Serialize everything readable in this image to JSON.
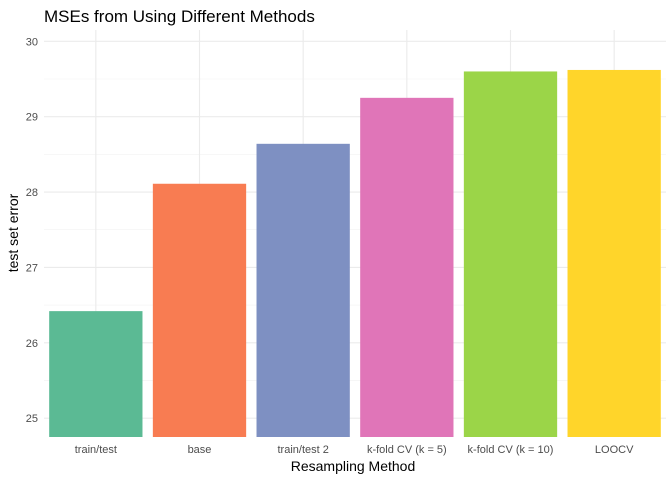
{
  "chart_data": {
    "type": "bar",
    "title": "MSEs from Using Different Methods",
    "xlabel": "Resampling Method",
    "ylabel": "test set error",
    "categories": [
      "train/test",
      "base",
      "train/test 2",
      "k-fold CV (k = 5)",
      "k-fold CV (k = 10)",
      "LOOCV"
    ],
    "values": [
      26.42,
      28.11,
      28.64,
      29.25,
      29.6,
      29.62
    ],
    "colors": [
      "#5BBA94",
      "#F87C52",
      "#7E90C2",
      "#E075B8",
      "#9BD548",
      "#FFD52A"
    ],
    "ylim": [
      24.75,
      30.15
    ],
    "yticks": [
      25,
      26,
      27,
      28,
      29,
      30
    ],
    "grid": true,
    "legend": "none"
  }
}
